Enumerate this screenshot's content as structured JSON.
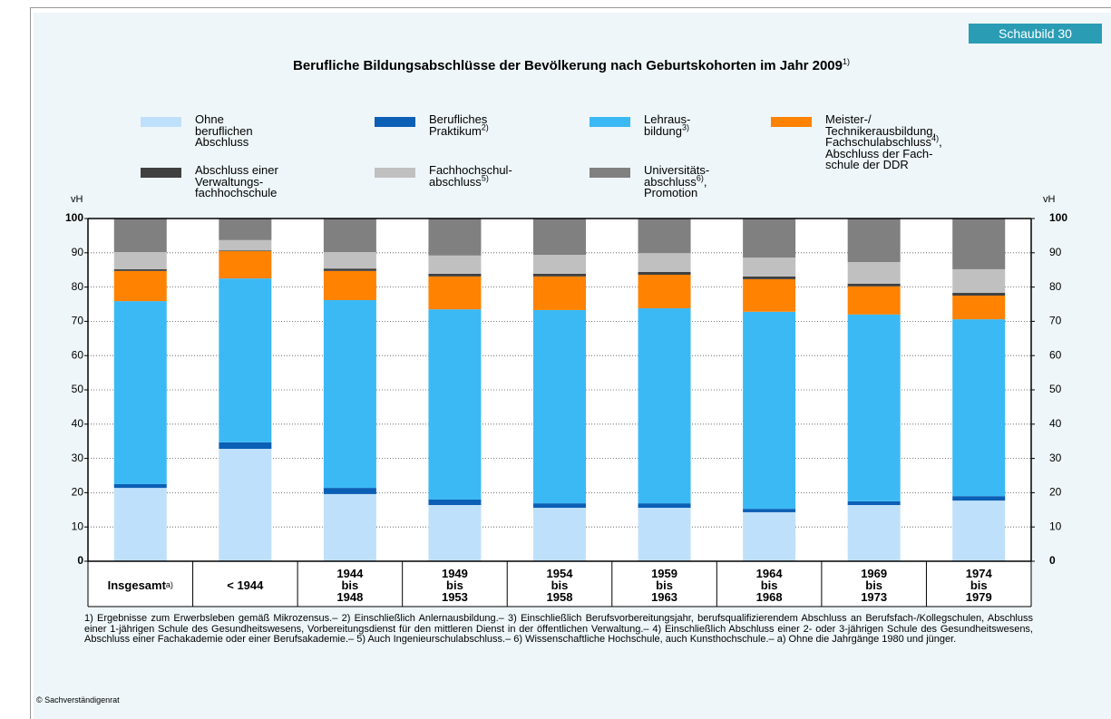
{
  "chart_data": {
    "type": "stacked_bar",
    "badge": "Schaubild 30",
    "title": "Berufliche Bildungsabschlüsse der Bevölkerung nach Geburtskohorten im Jahr 2009",
    "title_footnote": "1)",
    "ylabel": "vH",
    "ylim": [
      0,
      100
    ],
    "yticks": [
      0,
      10,
      20,
      30,
      40,
      50,
      60,
      70,
      80,
      90,
      100
    ],
    "grid": true,
    "categories": [
      "Insgesamt",
      "< 1944",
      "1944\nbis\n1948",
      "1949\nbis\n1953",
      "1954\nbis\n1958",
      "1959\nbis\n1963",
      "1964\nbis\n1968",
      "1969\nbis\n1973",
      "1974\nbis\n1979"
    ],
    "category_footnotes": [
      "a)",
      null,
      null,
      null,
      null,
      null,
      null,
      null,
      null
    ],
    "series": [
      {
        "name": "Ohne\nberuflichen\nAbschluss",
        "color": "#bfe0fb",
        "values": [
          21.4,
          32.8,
          19.6,
          16.4,
          15.6,
          15.6,
          14.3,
          16.4,
          17.7
        ]
      },
      {
        "name": "Berufliches\nPraktikum",
        "footnote": "2)",
        "color": "#0b5fb5",
        "values": [
          1.1,
          1.9,
          1.8,
          1.6,
          1.3,
          1.3,
          1.0,
          1.1,
          1.3
        ]
      },
      {
        "name": "Lehraus-\nbildung",
        "footnote": "3)",
        "color": "#3bb9f5",
        "values": [
          53.4,
          47.8,
          54.8,
          55.5,
          56.4,
          56.9,
          57.5,
          54.5,
          51.6
        ]
      },
      {
        "name": "Meister-/\nTechnikerausbildung,\nFachschulabschluss",
        "footnote": "4)",
        "name_cont": ",\nAbschluss der Fach-\nschule der DDR",
        "color": "#ff8200",
        "values": [
          8.8,
          8.0,
          8.5,
          9.6,
          9.8,
          9.8,
          9.5,
          8.2,
          6.9
        ]
      },
      {
        "name": "Abschluss einer\nVerwaltungs-\nfachhochschule",
        "color": "#404040",
        "values": [
          0.5,
          0.2,
          0.7,
          0.8,
          0.8,
          0.8,
          0.8,
          0.8,
          0.8
        ]
      },
      {
        "name": "Fachhochschul-\nabschluss",
        "footnote": "5)",
        "color": "#c0c0c0",
        "values": [
          5.0,
          3.0,
          4.8,
          5.3,
          5.5,
          5.5,
          5.5,
          6.3,
          6.9
        ]
      },
      {
        "name": "Universitäts-\nabschluss",
        "footnote": "6)",
        "name_cont": ",\nPromotion",
        "color": "#808080",
        "values": [
          9.8,
          6.3,
          9.8,
          10.8,
          10.6,
          10.1,
          11.4,
          12.7,
          14.8
        ]
      }
    ],
    "notes": "1) Ergebnisse zum Erwerbsleben gemäß Mikrozensus.– 2) Einschließlich Anlernausbildung.– 3) Einschließlich Berufsvorbereitungsjahr, berufsqualifizierendem Abschluss an Berufsfach-/Kollegschulen, Abschluss einer 1-jährigen Schule des Gesundheitswesens, Vorbereitungsdienst für den mittleren Dienst in der öffentlichen Verwaltung.– 4) Einschließlich Abschluss einer 2- oder 3-jährigen Schule des Gesundheitswesens, Abschluss einer Fachakademie oder einer Berufsakademie.– 5) Auch Ingenieurschulabschluss.– 6) Wissenschaftliche Hochschule, auch Kunsthochschule.– a) Ohne die Jahrgänge 1980 und jünger.",
    "source": "© Sachverständigenrat"
  }
}
